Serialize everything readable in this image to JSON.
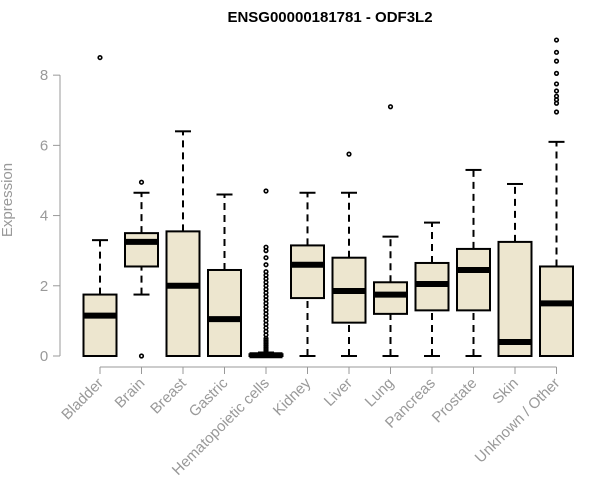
{
  "chart_data": {
    "type": "boxplot",
    "title": "ENSG00000181781 - ODF3L2",
    "xlabel": "",
    "ylabel": "Expression",
    "ylim": [
      0,
      9.4
    ],
    "yticks": [
      0,
      2,
      4,
      6,
      8
    ],
    "grid": false,
    "colors": {
      "box_fill": "#ede6cf",
      "stroke": "#000000",
      "axis_text": "#999999"
    },
    "categories": [
      "Bladder",
      "Brain",
      "Breast",
      "Gastric",
      "Hematopoietic cells",
      "Kidney",
      "Liver",
      "Lung",
      "Pancreas",
      "Prostate",
      "Skin",
      "Unknown / Other"
    ],
    "boxes": [
      {
        "min": 0,
        "q1": 0,
        "median": 1.15,
        "q3": 1.75,
        "max": 3.3,
        "outliers": [
          8.5
        ]
      },
      {
        "min": 1.75,
        "q1": 2.55,
        "median": 3.25,
        "q3": 3.5,
        "max": 4.65,
        "outliers": [
          0,
          4.95
        ]
      },
      {
        "min": 0,
        "q1": 0,
        "median": 2.0,
        "q3": 3.55,
        "max": 6.4,
        "outliers": []
      },
      {
        "min": 0,
        "q1": 0,
        "median": 1.05,
        "q3": 2.45,
        "max": 4.6,
        "outliers": []
      },
      {
        "min": 0,
        "q1": 0,
        "median": 0.02,
        "q3": 0.05,
        "max": 0.1,
        "outliers": [
          0.15,
          0.2,
          0.25,
          0.3,
          0.35,
          0.4,
          0.45,
          0.5,
          0.6,
          0.7,
          0.8,
          0.9,
          1.0,
          1.1,
          1.2,
          1.3,
          1.4,
          1.5,
          1.6,
          1.7,
          1.8,
          1.9,
          2.0,
          2.1,
          2.2,
          2.3,
          2.4,
          2.6,
          2.8,
          3.0,
          3.1,
          4.7
        ]
      },
      {
        "min": 0,
        "q1": 1.65,
        "median": 2.6,
        "q3": 3.15,
        "max": 4.65,
        "outliers": []
      },
      {
        "min": 0,
        "q1": 0.95,
        "median": 1.85,
        "q3": 2.8,
        "max": 4.65,
        "outliers": [
          5.75
        ]
      },
      {
        "min": 0,
        "q1": 1.2,
        "median": 1.75,
        "q3": 2.1,
        "max": 3.4,
        "outliers": [
          7.1
        ]
      },
      {
        "min": 0,
        "q1": 1.3,
        "median": 2.05,
        "q3": 2.65,
        "max": 3.8,
        "outliers": []
      },
      {
        "min": 0,
        "q1": 1.3,
        "median": 2.45,
        "q3": 3.05,
        "max": 5.3,
        "outliers": []
      },
      {
        "min": 0,
        "q1": 0,
        "median": 0.4,
        "q3": 3.25,
        "max": 4.9,
        "outliers": []
      },
      {
        "min": 0,
        "q1": 0,
        "median": 1.5,
        "q3": 2.55,
        "max": 6.1,
        "outliers": [
          6.95,
          7.2,
          7.3,
          7.4,
          7.55,
          7.75,
          8.05,
          8.4,
          8.65,
          9.0
        ]
      }
    ]
  }
}
